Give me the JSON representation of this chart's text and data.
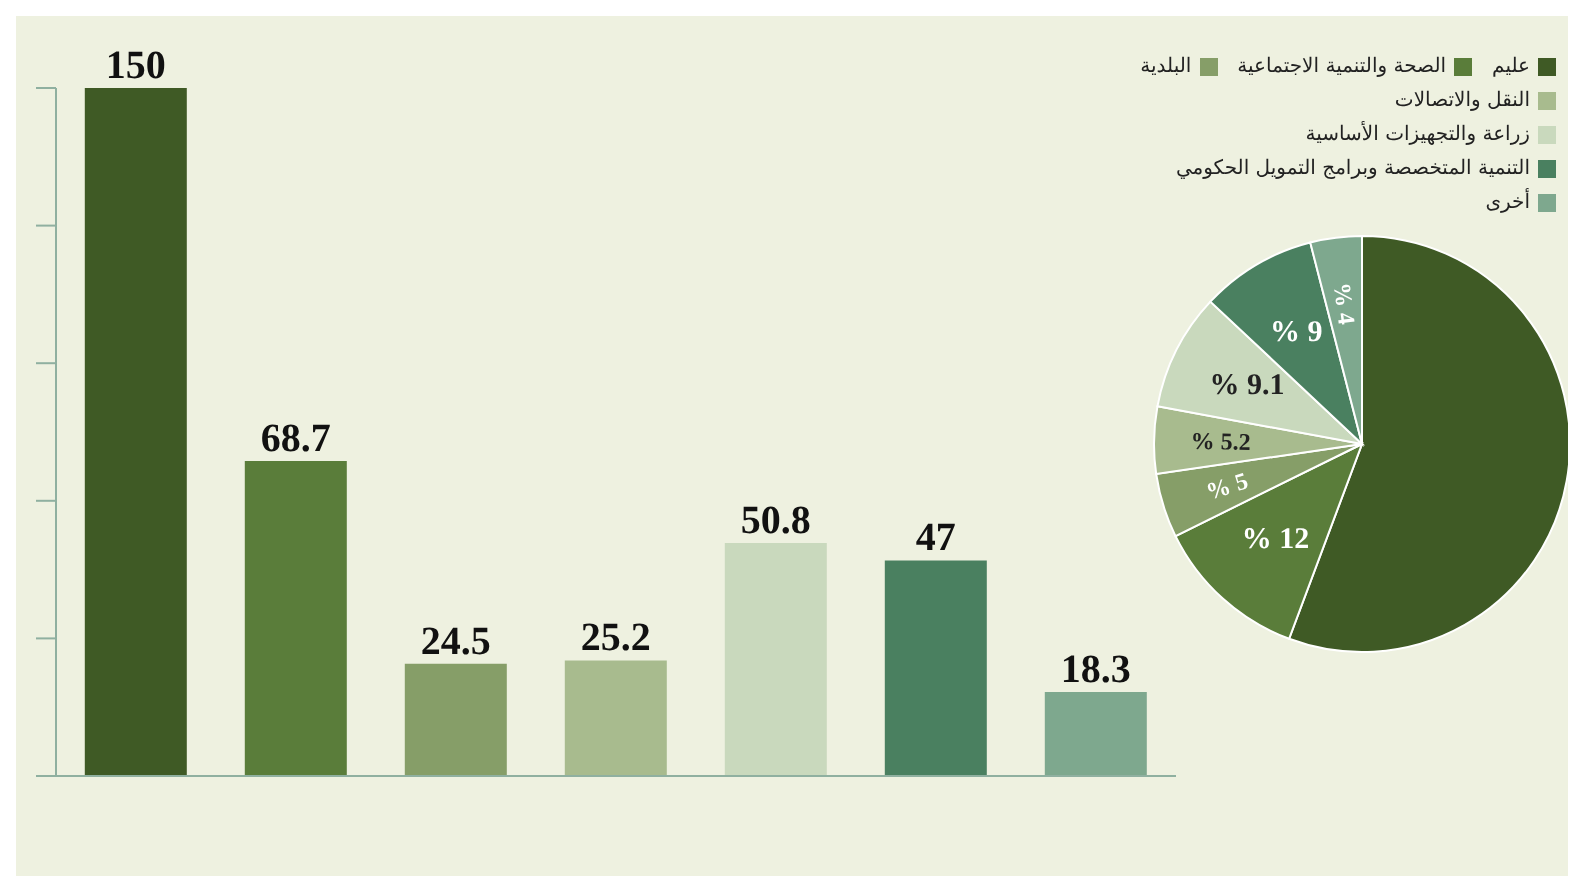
{
  "chart_data": [
    {
      "type": "bar",
      "categories": [
        null,
        null,
        null,
        null,
        null,
        null,
        null
      ],
      "values": [
        150,
        68.7,
        24.5,
        25.2,
        50.8,
        47,
        18.3
      ],
      "colors": [
        "#3f5a25",
        "#5a7d3a",
        "#869e68",
        "#a8bb8e",
        "#c9d9bd",
        "#4a8060",
        "#7ea88e"
      ],
      "data_labels": true,
      "ylim": [
        0,
        150
      ],
      "yticks": [
        {
          "value": 0,
          "label": null
        },
        {
          "value": 30,
          "label": null
        },
        {
          "value": 60,
          "label": null
        },
        {
          "value": 90,
          "label": null
        },
        {
          "value": 120,
          "label": null
        },
        {
          "value": 150,
          "label": null
        }
      ]
    },
    {
      "type": "pie",
      "categories": [
        "عليم",
        "الصحة والتنمية الاجتماعية",
        "البلدية",
        "النقل والاتصالات",
        "زراعة والتجهيزات الأساسية",
        "التنمية المتخصصة وبرامج التمويل الحكومي",
        "أخرى"
      ],
      "values": [
        55.7,
        12,
        5,
        5.2,
        9.1,
        9,
        4
      ],
      "colors": [
        "#3f5a25",
        "#5a7d3a",
        "#869e68",
        "#a8bb8e",
        "#c9d9bd",
        "#4a8060",
        "#7ea88e"
      ],
      "value_labels": [
        null,
        "% 12",
        "% 5",
        "% 5.2",
        "% 9.1",
        "% 9",
        "% 4"
      ],
      "legend": "top"
    }
  ]
}
